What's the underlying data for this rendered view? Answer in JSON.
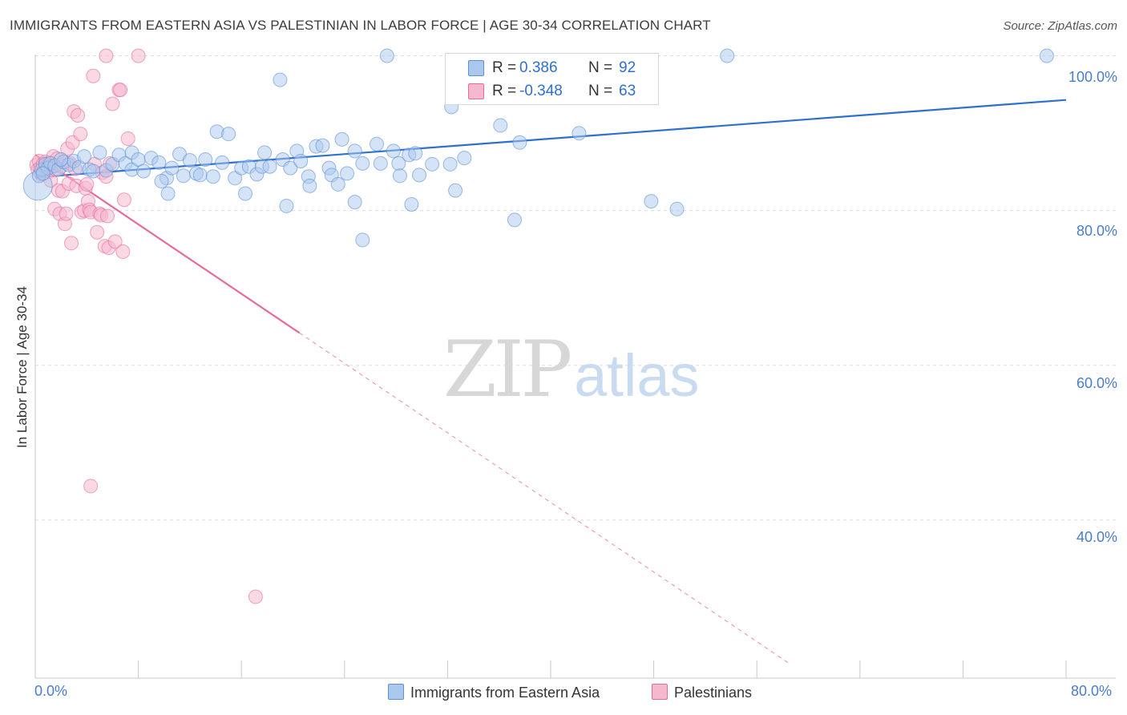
{
  "chart_data": {
    "type": "scatter",
    "title": "IMMIGRANTS FROM EASTERN ASIA VS PALESTINIAN IN LABOR FORCE | AGE 30-34 CORRELATION CHART",
    "source": "Source: ZipAtlas.com",
    "xlabel": "",
    "ylabel": "In Labor Force | Age 30-34",
    "xlim": [
      0,
      80
    ],
    "ylim": [
      20,
      101
    ],
    "x_tick_labels": [
      "0.0%",
      "80.0%"
    ],
    "y_ticks": [
      40,
      60,
      80,
      100
    ],
    "y_tick_labels": [
      "40.0%",
      "60.0%",
      "80.0%",
      "100.0%"
    ],
    "watermark": {
      "zip": "ZIP",
      "atlas": "atlas"
    },
    "colors": {
      "blue": "#5b8fd6",
      "blue_fill": "#aac8ee",
      "pink": "#e66b9a",
      "pink_fill": "#f5b8cd",
      "accent": "#2f6fd1"
    },
    "stats": [
      {
        "series": "Immigrants from Eastern Asia",
        "r_label": "R =",
        "r": "0.386",
        "n_label": "N =",
        "n": "92"
      },
      {
        "series": "Palestinians",
        "r_label": "R =",
        "r": "-0.348",
        "n_label": "N =",
        "n": "63"
      }
    ],
    "series": [
      {
        "name": "Immigrants from Eastern Asia",
        "color": "#5b8fd6",
        "trend": {
          "x": [
            0,
            80
          ],
          "y": [
            84.3,
            94.3
          ],
          "style": "solid"
        },
        "points": [
          [
            0.2,
            83.2
          ],
          [
            0.3,
            84.5
          ],
          [
            0.5,
            85.3
          ],
          [
            0.8,
            86
          ],
          [
            1.0,
            85.5
          ],
          [
            1.2,
            86.1
          ],
          [
            1.5,
            85.8
          ],
          [
            1.8,
            85.3
          ],
          [
            2.2,
            86.3
          ],
          [
            2.6,
            85.9
          ],
          [
            3.0,
            86.4
          ],
          [
            3.4,
            85.6
          ],
          [
            3.8,
            87.0
          ],
          [
            4.2,
            85.3
          ],
          [
            4.5,
            85.1
          ],
          [
            5.0,
            87.5
          ],
          [
            5.5,
            85.2
          ],
          [
            6.0,
            86.0
          ],
          [
            6.5,
            87.2
          ],
          [
            7.0,
            86.1
          ],
          [
            7.5,
            85.3
          ],
          [
            7.5,
            87.5
          ],
          [
            8.0,
            86.6
          ],
          [
            8.4,
            85.1
          ],
          [
            9.0,
            86.8
          ],
          [
            9.6,
            86.2
          ],
          [
            10.2,
            84.2
          ],
          [
            10.3,
            82.2
          ],
          [
            10.6,
            85.5
          ],
          [
            11.2,
            87.3
          ],
          [
            11.5,
            84.5
          ],
          [
            12.0,
            86.5
          ],
          [
            12.5,
            84.8
          ],
          [
            12.8,
            84.6
          ],
          [
            13.2,
            86.6
          ],
          [
            13.8,
            84.4
          ],
          [
            14.1,
            90.2
          ],
          [
            14.5,
            86.2
          ],
          [
            15.0,
            89.9
          ],
          [
            15.5,
            84.2
          ],
          [
            16.0,
            85.5
          ],
          [
            16.3,
            82.2
          ],
          [
            16.6,
            85.7
          ],
          [
            17.2,
            84.7
          ],
          [
            17.6,
            85.7
          ],
          [
            17.8,
            87.5
          ],
          [
            18.2,
            85.7
          ],
          [
            19.0,
            96.9
          ],
          [
            19.2,
            86.6
          ],
          [
            19.5,
            80.6
          ],
          [
            19.8,
            85.5
          ],
          [
            20.3,
            87.7
          ],
          [
            20.6,
            86.4
          ],
          [
            21.2,
            84.4
          ],
          [
            21.3,
            83.2
          ],
          [
            21.8,
            88.3
          ],
          [
            22.3,
            88.4
          ],
          [
            22.8,
            85.5
          ],
          [
            23.0,
            84.6
          ],
          [
            23.5,
            83.4
          ],
          [
            23.8,
            89.2
          ],
          [
            24.2,
            84.8
          ],
          [
            24.8,
            81.1
          ],
          [
            24.8,
            87.7
          ],
          [
            25.4,
            86.1
          ],
          [
            25.4,
            76.2
          ],
          [
            26.5,
            88.6
          ],
          [
            26.8,
            86.1
          ],
          [
            27.3,
            100.0
          ],
          [
            27.8,
            87.7
          ],
          [
            28.2,
            86.1
          ],
          [
            28.3,
            84.5
          ],
          [
            29.0,
            87.2
          ],
          [
            29.2,
            80.8
          ],
          [
            29.5,
            87.4
          ],
          [
            29.8,
            84.6
          ],
          [
            30.8,
            86.0
          ],
          [
            32.2,
            86.0
          ],
          [
            32.3,
            93.4
          ],
          [
            32.6,
            82.6
          ],
          [
            33.3,
            86.8
          ],
          [
            36.1,
            91.0
          ],
          [
            37.2,
            78.8
          ],
          [
            37.6,
            88.8
          ],
          [
            42.2,
            90.0
          ],
          [
            47.8,
            81.2
          ],
          [
            49.8,
            80.2
          ],
          [
            53.7,
            100.0
          ],
          [
            78.5,
            100.0
          ],
          [
            0.6,
            84.8
          ],
          [
            2.0,
            86.6
          ],
          [
            9.8,
            83.8
          ]
        ]
      },
      {
        "name": "Palestinians",
        "color": "#e66b9a",
        "trend": {
          "x": [
            0,
            20.5
          ],
          "y": [
            87.2,
            64.2
          ],
          "style": "solid",
          "dashed_x": [
            20.5,
            58.5
          ],
          "dashed_y": [
            64.2,
            21.5
          ]
        },
        "points": [
          [
            0.1,
            85.9
          ],
          [
            0.2,
            85.3
          ],
          [
            0.3,
            86.4
          ],
          [
            0.4,
            85.5
          ],
          [
            0.5,
            84.7
          ],
          [
            0.6,
            86.0
          ],
          [
            0.7,
            85.2
          ],
          [
            0.8,
            86.3
          ],
          [
            0.9,
            85.6
          ],
          [
            1.0,
            85.0
          ],
          [
            1.1,
            86.2
          ],
          [
            1.2,
            83.9
          ],
          [
            1.3,
            85.8
          ],
          [
            1.4,
            87.0
          ],
          [
            1.5,
            80.2
          ],
          [
            1.6,
            85.3
          ],
          [
            1.7,
            86.7
          ],
          [
            1.8,
            82.6
          ],
          [
            1.9,
            79.6
          ],
          [
            2.0,
            85.7
          ],
          [
            2.1,
            82.5
          ],
          [
            2.2,
            86.3
          ],
          [
            2.3,
            78.3
          ],
          [
            2.4,
            79.6
          ],
          [
            2.5,
            88.0
          ],
          [
            2.6,
            83.5
          ],
          [
            2.7,
            86.1
          ],
          [
            2.8,
            75.8
          ],
          [
            2.9,
            88.8
          ],
          [
            3.0,
            92.8
          ],
          [
            3.1,
            85.4
          ],
          [
            3.2,
            83.2
          ],
          [
            3.3,
            92.3
          ],
          [
            3.5,
            89.9
          ],
          [
            3.6,
            79.8
          ],
          [
            3.8,
            80.0
          ],
          [
            3.9,
            82.9
          ],
          [
            4.0,
            83.4
          ],
          [
            4.1,
            81.2
          ],
          [
            4.2,
            80.1
          ],
          [
            4.3,
            79.8
          ],
          [
            4.3,
            44.4
          ],
          [
            4.5,
            97.4
          ],
          [
            4.6,
            86.0
          ],
          [
            4.8,
            77.2
          ],
          [
            5.0,
            79.6
          ],
          [
            5.1,
            79.4
          ],
          [
            5.2,
            84.9
          ],
          [
            5.4,
            75.4
          ],
          [
            5.5,
            100.0
          ],
          [
            5.6,
            79.3
          ],
          [
            5.7,
            75.2
          ],
          [
            5.8,
            86.1
          ],
          [
            5.5,
            84.4
          ],
          [
            6.0,
            93.8
          ],
          [
            6.2,
            76.0
          ],
          [
            6.5,
            95.6
          ],
          [
            6.6,
            95.6
          ],
          [
            6.8,
            74.7
          ],
          [
            6.9,
            81.4
          ],
          [
            7.2,
            89.3
          ],
          [
            8.0,
            100.0
          ],
          [
            17.1,
            30.1
          ]
        ]
      }
    ],
    "legend": [
      "Immigrants from Eastern Asia",
      "Palestinians"
    ]
  }
}
